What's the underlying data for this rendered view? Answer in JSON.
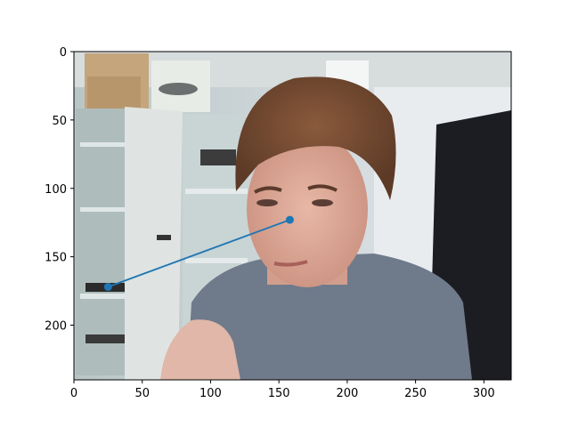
{
  "chart_data": {
    "type": "line",
    "title": "",
    "xlabel": "",
    "ylabel": "",
    "xlim": [
      0,
      320
    ],
    "ylim": [
      240,
      0
    ],
    "y_inverted": true,
    "grid": false,
    "x_ticks": [
      0,
      50,
      100,
      150,
      200,
      250,
      300
    ],
    "y_ticks": [
      0,
      50,
      100,
      150,
      200
    ],
    "series": [
      {
        "color": "#1f77b4",
        "marker": "circle",
        "points": [
          {
            "x": 25,
            "y": 172
          },
          {
            "x": 158,
            "y": 123
          }
        ]
      }
    ],
    "background": "webcam photo of a young man with brown hair in a grey t-shirt, metal cabinet and boxes behind"
  }
}
